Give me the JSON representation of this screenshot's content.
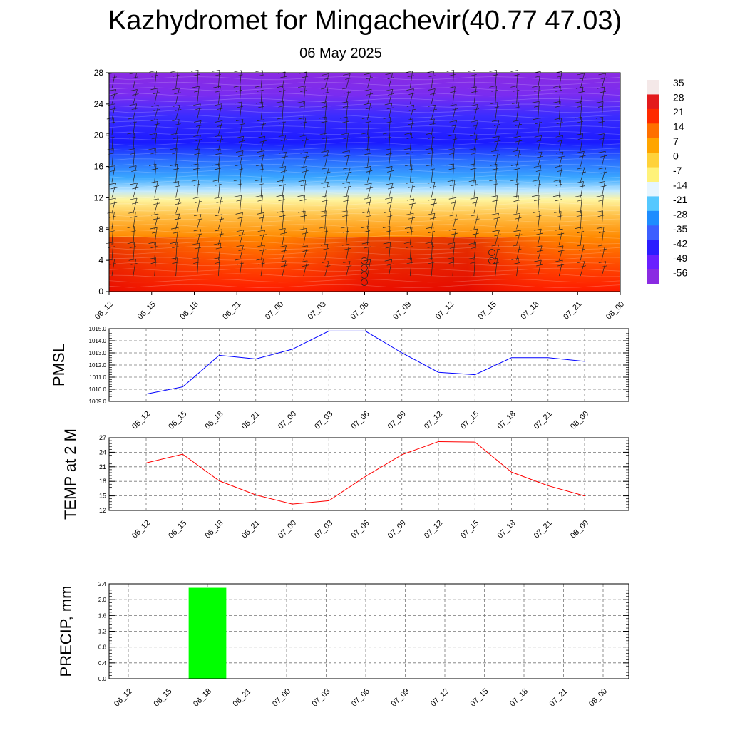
{
  "title": "Kazhydromet for Mingachevir(40.77 47.03)",
  "subtitle": "06 May 2025",
  "chart_data": [
    {
      "type": "heatmap",
      "title": "",
      "ylim": [
        0,
        28
      ],
      "yticks": [
        0,
        4,
        8,
        12,
        16,
        20,
        24,
        28
      ],
      "x": [
        "06_12",
        "06_15",
        "06_18",
        "06_21",
        "07_00",
        "07_03",
        "07_06",
        "07_09",
        "07_12",
        "07_15",
        "07_18",
        "07_21",
        "08_00"
      ],
      "colorbar": {
        "labels": [
          "35",
          "28",
          "21",
          "14",
          "7",
          "0",
          "-7",
          "-14",
          "-21",
          "-28",
          "-35",
          "-42",
          "-49",
          "-56"
        ],
        "colors": [
          "#f4e8e8",
          "#e31a1c",
          "#ff2a00",
          "#ff7000",
          "#ffa500",
          "#ffd23a",
          "#fff27a",
          "#e6f5ff",
          "#55c8ff",
          "#1e8dff",
          "#3c5fff",
          "#2b1cff",
          "#6a1fff",
          "#8a2be2"
        ]
      }
    },
    {
      "type": "line",
      "ylabel": "PMSL",
      "ylim": [
        1009.0,
        1015.0
      ],
      "yticks": [
        "1009.0",
        "1010.0",
        "1011.0",
        "1012.0",
        "1013.0",
        "1014.0",
        "1015.0"
      ],
      "x": [
        "06_12",
        "06_15",
        "06_18",
        "06_21",
        "07_00",
        "07_03",
        "07_06",
        "07_09",
        "07_12",
        "07_15",
        "07_18",
        "07_21",
        "08_00"
      ],
      "series": [
        {
          "color": "#0000ff",
          "values": [
            1009.6,
            1010.2,
            1012.8,
            1012.5,
            1013.3,
            1014.8,
            1014.8,
            1013.0,
            1011.4,
            1011.2,
            1012.6,
            1012.6,
            1012.3
          ]
        }
      ]
    },
    {
      "type": "line",
      "ylabel": "TEMP at 2 M",
      "ylim": [
        12,
        27
      ],
      "yticks": [
        "12",
        "15",
        "18",
        "21",
        "24",
        "27"
      ],
      "x": [
        "06_12",
        "06_15",
        "06_18",
        "06_21",
        "07_00",
        "07_03",
        "07_06",
        "07_09",
        "07_12",
        "07_15",
        "07_18",
        "07_21",
        "08_00"
      ],
      "series": [
        {
          "color": "#ff0000",
          "values": [
            21.8,
            23.6,
            18.1,
            15.2,
            13.3,
            14.0,
            19.0,
            23.5,
            26.2,
            26.1,
            19.9,
            17.1,
            15.0
          ]
        }
      ]
    },
    {
      "type": "bar",
      "ylabel": "PRECIP, mm",
      "ylim": [
        0.0,
        2.4
      ],
      "yticks": [
        "0.0",
        "0.4",
        "0.8",
        "1.2",
        "1.6",
        "2.0",
        "2.4"
      ],
      "categories": [
        "06_12",
        "06_15",
        "06_18",
        "06_21",
        "07_00",
        "07_03",
        "07_06",
        "07_09",
        "07_12",
        "07_15",
        "07_18",
        "07_21",
        "08_00"
      ],
      "values": [
        0,
        0,
        2.3,
        0,
        0,
        0,
        0,
        0,
        0,
        0,
        0,
        0,
        0
      ],
      "color": "#00ff00"
    }
  ]
}
